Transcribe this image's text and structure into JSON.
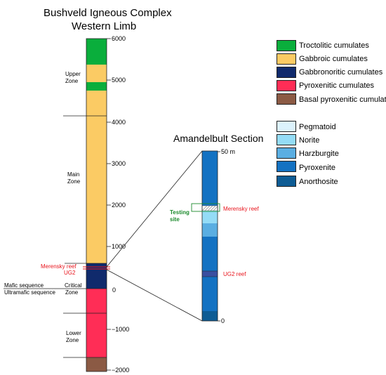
{
  "title_line1": "Bushveld Igneous Complex",
  "title_line2": "Western Limb",
  "section_title": "Amandelbult Section",
  "bic_ticks": [
    "6000",
    "5000",
    "4000",
    "3000",
    "2000",
    "1000",
    "0",
    "−1000",
    "−2000"
  ],
  "zones": {
    "upper": [
      "Upper",
      "Zone"
    ],
    "main": [
      "Main",
      "Zone"
    ],
    "critical": [
      "Critical",
      "Zone"
    ],
    "lower": [
      "Lower",
      "Zone"
    ]
  },
  "sequence_labels": {
    "mafic": "Mafic sequence",
    "ultramafic": "Ultramafic sequence"
  },
  "reef_labels": {
    "merensky": "Merensky reef",
    "ug2": "UG2",
    "section_merensky": "Merensky reef",
    "section_ug2": "UG2 reef"
  },
  "testing_site": [
    "Testing",
    "site"
  ],
  "section_ticks": {
    "top": "50 m",
    "bottom": "0"
  },
  "legend_cumulates": [
    {
      "label": "Troctolitic cumulates",
      "color": "#0aae3c"
    },
    {
      "label": "Gabbroic cumulates",
      "color": "#fbcb64"
    },
    {
      "label": "Gabbronoritic cumulates",
      "color": "#102a6c"
    },
    {
      "label": "Pyroxenitic cumulates",
      "color": "#ff2d56"
    },
    {
      "label": "Basal pyroxenitic cumulates",
      "color": "#8b5a44"
    }
  ],
  "legend_section": [
    {
      "label": "Pegmatoid",
      "color": "#dcf2fc"
    },
    {
      "label": "Norite",
      "color": "#94dcf6"
    },
    {
      "label": "Harzburgite",
      "color": "#5aaee2"
    },
    {
      "label": "Pyroxenite",
      "color": "#1472c2"
    },
    {
      "label": "Anorthosite",
      "color": "#0e5c94"
    }
  ],
  "colors": {
    "troctolitic": "#0aae3c",
    "gabbroic": "#fbcb64",
    "gabbronoritic": "#102a6c",
    "pyroxenitic": "#ff2d56",
    "basal": "#8b5a44",
    "pegmatoid": "#dcf2fc",
    "norite": "#94dcf6",
    "harzburgite": "#5aaee2",
    "pyroxenite": "#1472c2",
    "anorthosite": "#0e5c94",
    "reef": "#e8141c",
    "testing": "#1b8a2c"
  }
}
